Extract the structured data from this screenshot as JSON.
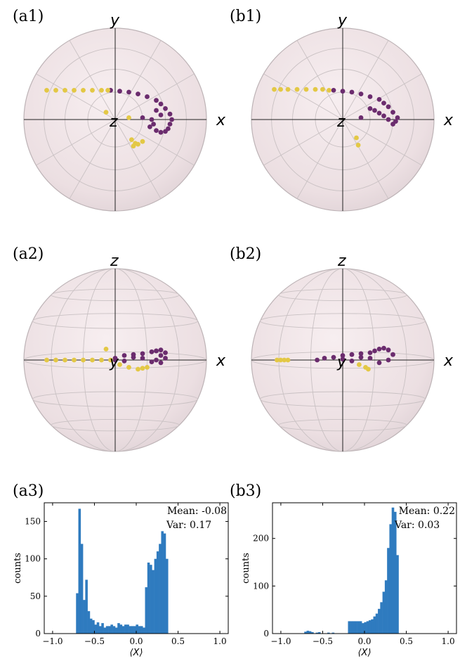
{
  "panel_labels": {
    "a1": "(a1)",
    "b1": "(b1)",
    "a2": "(a2)",
    "b2": "(b2)",
    "a3": "(a3)",
    "b3": "(b3)"
  },
  "axis_letters": {
    "x": "x",
    "y": "y",
    "z": "z"
  },
  "colors": {
    "trajectory_purple": "#6b2c6e",
    "trajectory_yellow": "#e3c845",
    "sphere_fill": "#efe3e6",
    "histogram_bar": "#2f7bbf"
  },
  "chart_data": [
    {
      "type": "scatter",
      "panel": "(a1)",
      "view": "top (x-y plane, z toward viewer)",
      "axes": [
        "x",
        "y",
        "z"
      ],
      "series": [
        {
          "color": "#6b2c6e",
          "x": [
            -0.05,
            0.05,
            0.15,
            0.25,
            0.35,
            0.45,
            0.5,
            0.55,
            0.6,
            0.62,
            0.6,
            0.58,
            0.55,
            0.5,
            0.45,
            0.42,
            0.4,
            0.38,
            0.5,
            0.45,
            0.3
          ],
          "y": [
            0.32,
            0.31,
            0.3,
            0.28,
            0.25,
            0.21,
            0.17,
            0.12,
            0.06,
            0.0,
            -0.05,
            -0.1,
            -0.13,
            -0.14,
            -0.12,
            -0.05,
            0.0,
            -0.08,
            0.05,
            0.1,
            0.02
          ]
        },
        {
          "color": "#e3c845",
          "x": [
            -0.75,
            -0.65,
            -0.55,
            -0.45,
            -0.35,
            -0.25,
            -0.15,
            -0.08,
            0.15,
            0.18,
            0.22,
            0.2,
            0.25,
            0.3,
            -0.1
          ],
          "y": [
            0.32,
            0.32,
            0.32,
            0.32,
            0.32,
            0.32,
            0.32,
            0.32,
            0.02,
            -0.22,
            -0.26,
            -0.29,
            -0.27,
            -0.24,
            0.08
          ]
        }
      ]
    },
    {
      "type": "scatter",
      "panel": "(b1)",
      "view": "top (x-y plane, z toward viewer)",
      "axes": [
        "x",
        "y",
        "z"
      ],
      "series": [
        {
          "color": "#6b2c6e",
          "x": [
            -0.1,
            0.0,
            0.1,
            0.2,
            0.3,
            0.4,
            0.45,
            0.5,
            0.55,
            0.6,
            0.58,
            0.55,
            0.5,
            0.45,
            0.4,
            0.35,
            0.3,
            0.2
          ],
          "y": [
            0.32,
            0.31,
            0.3,
            0.28,
            0.25,
            0.22,
            0.18,
            0.14,
            0.08,
            0.02,
            -0.02,
            -0.05,
            0.0,
            0.04,
            0.07,
            0.1,
            0.12,
            0.02
          ]
        },
        {
          "color": "#e3c845",
          "x": [
            -0.75,
            -0.68,
            -0.6,
            -0.5,
            -0.4,
            -0.3,
            -0.22,
            -0.15,
            0.15,
            0.17
          ],
          "y": [
            0.33,
            0.33,
            0.33,
            0.33,
            0.33,
            0.33,
            0.33,
            0.32,
            -0.2,
            -0.28
          ]
        }
      ]
    },
    {
      "type": "scatter",
      "panel": "(a2)",
      "view": "side (x-z plane, y toward viewer)",
      "axes": [
        "x",
        "y",
        "z"
      ],
      "series": [
        {
          "color": "#6b2c6e",
          "x": [
            0.0,
            0.1,
            0.2,
            0.3,
            0.4,
            0.45,
            0.5,
            0.55,
            0.55,
            0.5,
            0.45,
            0.4,
            0.3,
            0.2,
            0.1,
            0.0,
            0.5,
            0.45
          ],
          "y": [
            0.02,
            0.05,
            0.06,
            0.07,
            0.09,
            0.1,
            0.11,
            0.08,
            0.02,
            -0.03,
            0.0,
            -0.02,
            0.02,
            0.03,
            -0.01,
            0.0,
            0.05,
            0.1
          ]
        },
        {
          "color": "#e3c845",
          "x": [
            -0.75,
            -0.65,
            -0.55,
            -0.45,
            -0.35,
            -0.25,
            -0.15,
            -0.05,
            0.05,
            0.15,
            0.25,
            0.3,
            0.35,
            -0.1
          ],
          "y": [
            0.0,
            0.0,
            0.0,
            0.0,
            0.0,
            0.0,
            0.0,
            0.0,
            -0.05,
            -0.08,
            -0.1,
            -0.09,
            -0.08,
            0.12
          ]
        }
      ]
    },
    {
      "type": "scatter",
      "panel": "(b2)",
      "view": "side (x-z plane, y toward viewer)",
      "axes": [
        "x",
        "y",
        "z"
      ],
      "series": [
        {
          "color": "#6b2c6e",
          "x": [
            -0.28,
            -0.2,
            -0.1,
            0.0,
            0.1,
            0.2,
            0.3,
            0.35,
            0.4,
            0.45,
            0.5,
            0.55,
            0.5,
            0.4,
            0.3,
            0.2,
            0.1,
            0.0
          ],
          "y": [
            0.0,
            0.02,
            0.03,
            0.05,
            0.06,
            0.07,
            0.08,
            0.1,
            0.12,
            0.13,
            0.11,
            0.06,
            0.0,
            -0.03,
            0.02,
            0.03,
            -0.01,
            0.01
          ]
        },
        {
          "color": "#e3c845",
          "x": [
            -0.72,
            -0.68,
            -0.64,
            -0.6,
            0.18,
            0.25,
            0.28
          ],
          "y": [
            0.0,
            0.0,
            0.0,
            0.0,
            -0.05,
            -0.08,
            -0.1
          ]
        }
      ]
    },
    {
      "type": "bar",
      "panel": "(a3)",
      "xlabel": "⟨X⟩",
      "ylabel": "counts",
      "xlim": [
        -1.1,
        1.1
      ],
      "ylim": [
        0,
        175
      ],
      "xticks": [
        "−1.0",
        "−0.5",
        "0.0",
        "0.5",
        "1.0"
      ],
      "xtick_values": [
        -1.0,
        -0.5,
        0.0,
        0.5,
        1.0
      ],
      "yticks": [
        "0",
        "50",
        "100",
        "150"
      ],
      "ytick_values": [
        0,
        50,
        100,
        150
      ],
      "stats": {
        "mean": "Mean: -0.08",
        "var": "Var: 0.17"
      },
      "bin_start": -0.72,
      "bin_width": 0.0275,
      "values": [
        54,
        167,
        120,
        45,
        72,
        30,
        20,
        18,
        12,
        15,
        10,
        14,
        8,
        10,
        10,
        12,
        10,
        8,
        14,
        12,
        10,
        12,
        12,
        10,
        10,
        10,
        12,
        10,
        10,
        8,
        62,
        95,
        92,
        85,
        100,
        110,
        120,
        137,
        134,
        100
      ]
    },
    {
      "type": "bar",
      "panel": "(b3)",
      "xlabel": "⟨X⟩",
      "ylabel": "counts",
      "xlim": [
        -1.1,
        1.1
      ],
      "ylim": [
        0,
        275
      ],
      "xticks": [
        "−1.0",
        "−0.5",
        "0.0",
        "0.5",
        "1.0"
      ],
      "xtick_values": [
        -1.0,
        -0.5,
        0.0,
        0.5,
        1.0
      ],
      "yticks": [
        "0",
        "100",
        "200"
      ],
      "ytick_values": [
        0,
        100,
        200
      ],
      "stats": {
        "mean": "Mean: 0.22",
        "var": "Var: 0.03"
      },
      "bin_start": -0.72,
      "bin_width": 0.0275,
      "values": [
        4,
        6,
        5,
        3,
        0,
        2,
        3,
        0,
        0,
        0,
        2,
        0,
        2,
        0,
        0,
        0,
        0,
        0,
        0,
        26,
        26,
        26,
        26,
        26,
        26,
        22,
        24,
        26,
        28,
        30,
        36,
        42,
        52,
        66,
        88,
        112,
        180,
        230,
        265,
        256,
        165
      ]
    }
  ]
}
